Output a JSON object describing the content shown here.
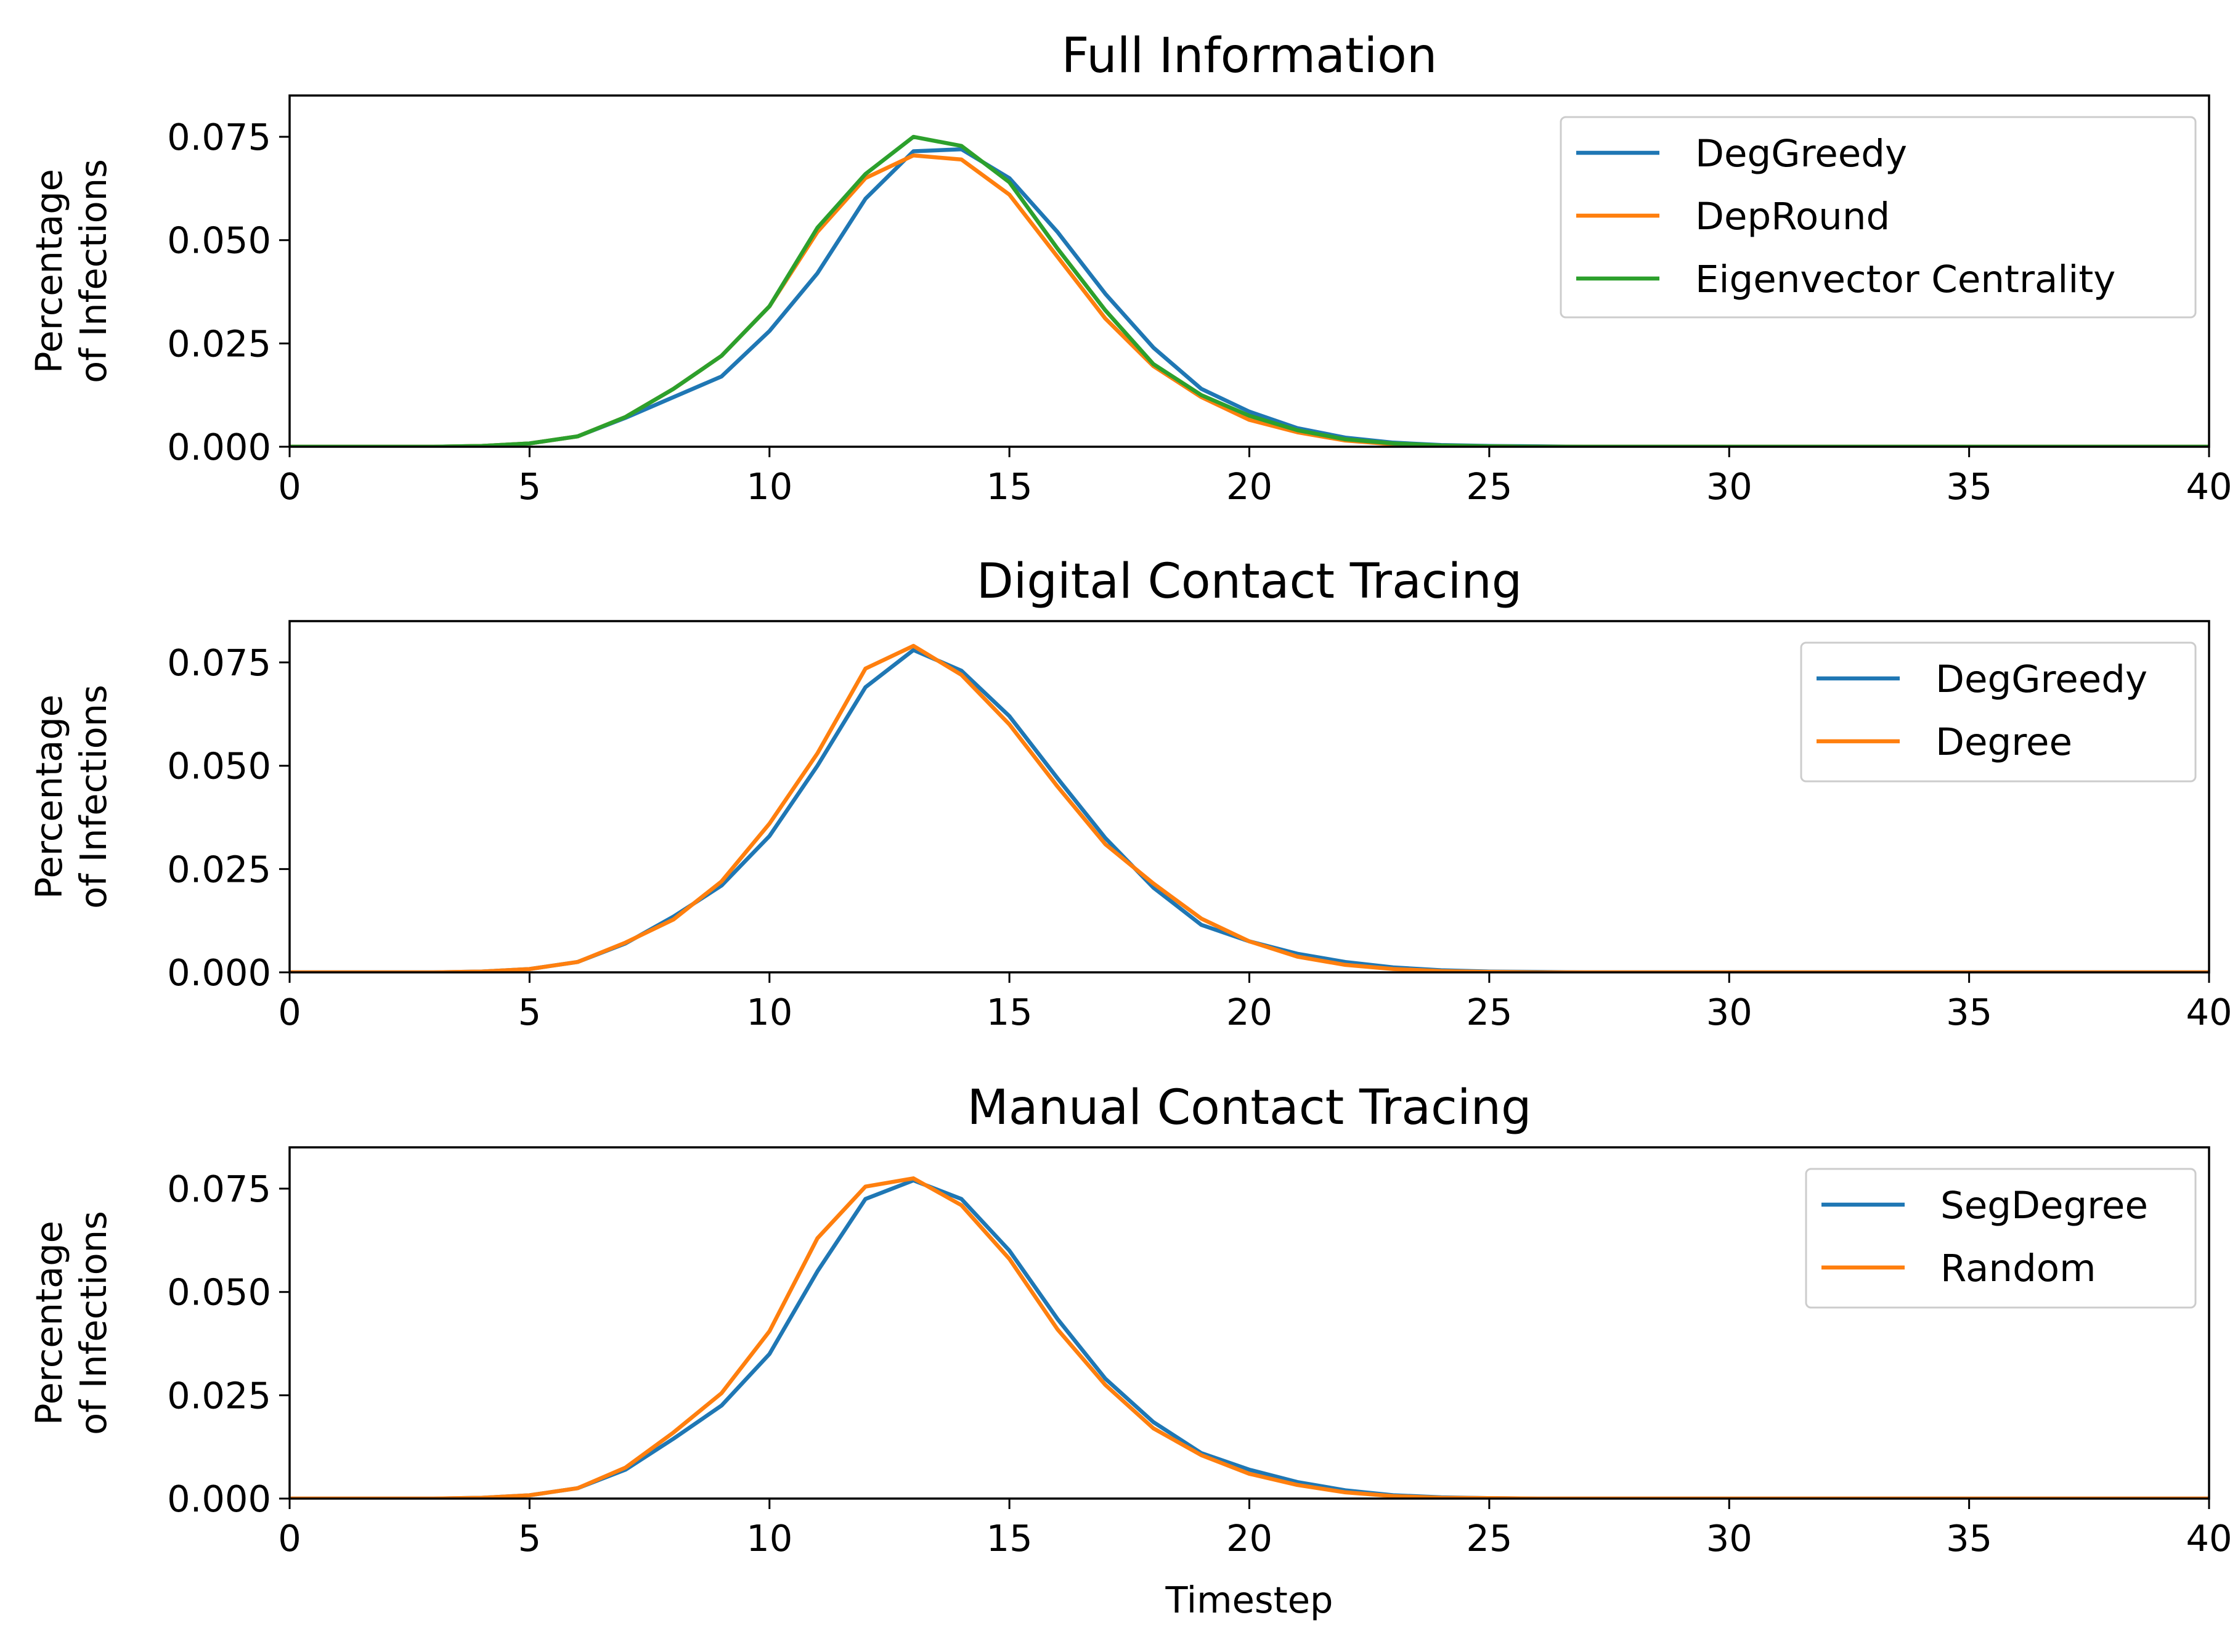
{
  "chart_data": [
    {
      "type": "line",
      "title": "Full Information",
      "xlabel": "",
      "ylabel": [
        "Percentage",
        "of Infections"
      ],
      "xlim": [
        0,
        40
      ],
      "ylim": [
        0,
        0.085
      ],
      "xticks": [
        0,
        5,
        10,
        15,
        20,
        25,
        30,
        35,
        40
      ],
      "xtick_labels": [
        "0",
        "5",
        "10",
        "15",
        "20",
        "25",
        "30",
        "35",
        "40"
      ],
      "yticks": [
        0,
        0.025,
        0.05,
        0.075
      ],
      "ytick_labels": [
        "0.000",
        "0.025",
        "0.050",
        "0.075"
      ],
      "grid": false,
      "legend_position": "top-right",
      "x": [
        0,
        1,
        2,
        3,
        4,
        5,
        6,
        7,
        8,
        9,
        10,
        11,
        12,
        13,
        14,
        15,
        16,
        17,
        18,
        19,
        20,
        21,
        22,
        23,
        24,
        25,
        26,
        27,
        28,
        29,
        30,
        31,
        32,
        33,
        34,
        35,
        36,
        37,
        38,
        39,
        40
      ],
      "series": [
        {
          "name": "DegGreedy",
          "color": "#1f77b4",
          "values": [
            0,
            0,
            0,
            0,
            0.0002,
            0.0008,
            0.0025,
            0.007,
            0.012,
            0.017,
            0.028,
            0.042,
            0.06,
            0.0715,
            0.072,
            0.065,
            0.052,
            0.037,
            0.024,
            0.014,
            0.0085,
            0.0045,
            0.0022,
            0.001,
            0.0004,
            0.0002,
            0.0001,
            0,
            0,
            0,
            0,
            0,
            0,
            0,
            0,
            0,
            0,
            0,
            0,
            0,
            0
          ]
        },
        {
          "name": "DepRound",
          "color": "#ff7f0e",
          "values": [
            0,
            0,
            0,
            0,
            0.0002,
            0.0008,
            0.0025,
            0.0072,
            0.014,
            0.022,
            0.034,
            0.052,
            0.065,
            0.0705,
            0.0695,
            0.061,
            0.046,
            0.031,
            0.0195,
            0.012,
            0.0065,
            0.0035,
            0.0015,
            0.0006,
            0.0002,
            0.0001,
            0,
            0,
            0,
            0,
            0,
            0,
            0,
            0,
            0,
            0,
            0,
            0,
            0,
            0,
            0
          ]
        },
        {
          "name": "Eigenvector Centrality",
          "color": "#2ca02c",
          "values": [
            0,
            0,
            0,
            0,
            0.0002,
            0.0008,
            0.0025,
            0.0072,
            0.014,
            0.022,
            0.034,
            0.053,
            0.066,
            0.075,
            0.0728,
            0.064,
            0.048,
            0.033,
            0.02,
            0.0125,
            0.0075,
            0.004,
            0.0018,
            0.0008,
            0.0003,
            0.0001,
            0,
            0,
            0,
            0,
            0,
            0,
            0,
            0,
            0,
            0,
            0,
            0,
            0,
            0,
            0
          ]
        }
      ]
    },
    {
      "type": "line",
      "title": "Digital Contact Tracing",
      "xlabel": "",
      "ylabel": [
        "Percentage",
        "of Infections"
      ],
      "xlim": [
        0,
        40
      ],
      "ylim": [
        0,
        0.085
      ],
      "xticks": [
        0,
        5,
        10,
        15,
        20,
        25,
        30,
        35,
        40
      ],
      "xtick_labels": [
        "0",
        "5",
        "10",
        "15",
        "20",
        "25",
        "30",
        "35",
        "40"
      ],
      "yticks": [
        0,
        0.025,
        0.05,
        0.075
      ],
      "ytick_labels": [
        "0.000",
        "0.025",
        "0.050",
        "0.075"
      ],
      "grid": false,
      "legend_position": "top-right",
      "x": [
        0,
        1,
        2,
        3,
        4,
        5,
        6,
        7,
        8,
        9,
        10,
        11,
        12,
        13,
        14,
        15,
        16,
        17,
        18,
        19,
        20,
        21,
        22,
        23,
        24,
        25,
        26,
        27,
        28,
        29,
        30,
        31,
        32,
        33,
        34,
        35,
        36,
        37,
        38,
        39,
        40
      ],
      "series": [
        {
          "name": "DegGreedy",
          "color": "#1f77b4",
          "values": [
            0,
            0,
            0,
            0,
            0.0002,
            0.0008,
            0.0025,
            0.007,
            0.0135,
            0.021,
            0.033,
            0.05,
            0.069,
            0.078,
            0.073,
            0.062,
            0.047,
            0.0325,
            0.0205,
            0.0115,
            0.0075,
            0.0045,
            0.0025,
            0.0012,
            0.0005,
            0.0002,
            0.0001,
            0,
            0,
            0,
            0,
            0,
            0,
            0,
            0,
            0,
            0,
            0,
            0,
            0,
            0
          ]
        },
        {
          "name": "Degree",
          "color": "#ff7f0e",
          "values": [
            0,
            0,
            0,
            0,
            0.0002,
            0.0008,
            0.0025,
            0.0072,
            0.0128,
            0.022,
            0.036,
            0.053,
            0.0735,
            0.079,
            0.072,
            0.06,
            0.045,
            0.031,
            0.0215,
            0.013,
            0.0075,
            0.0038,
            0.0018,
            0.0008,
            0.0003,
            0.0001,
            0,
            0,
            0,
            0,
            0,
            0,
            0,
            0,
            0,
            0,
            0,
            0,
            0,
            0,
            0
          ]
        }
      ]
    },
    {
      "type": "line",
      "title": "Manual Contact Tracing",
      "xlabel": "Timestep",
      "ylabel": [
        "Percentage",
        "of Infections"
      ],
      "xlim": [
        0,
        40
      ],
      "ylim": [
        0,
        0.085
      ],
      "xticks": [
        0,
        5,
        10,
        15,
        20,
        25,
        30,
        35,
        40
      ],
      "xtick_labels": [
        "0",
        "5",
        "10",
        "15",
        "20",
        "25",
        "30",
        "35",
        "40"
      ],
      "yticks": [
        0,
        0.025,
        0.05,
        0.075
      ],
      "ytick_labels": [
        "0.000",
        "0.025",
        "0.050",
        "0.075"
      ],
      "grid": false,
      "legend_position": "top-right",
      "x": [
        0,
        1,
        2,
        3,
        4,
        5,
        6,
        7,
        8,
        9,
        10,
        11,
        12,
        13,
        14,
        15,
        16,
        17,
        18,
        19,
        20,
        21,
        22,
        23,
        24,
        25,
        26,
        27,
        28,
        29,
        30,
        31,
        32,
        33,
        34,
        35,
        36,
        37,
        38,
        39,
        40
      ],
      "series": [
        {
          "name": "SegDegree",
          "color": "#1f77b4",
          "values": [
            0,
            0,
            0,
            0,
            0.0002,
            0.0008,
            0.0025,
            0.007,
            0.0145,
            0.0225,
            0.035,
            0.055,
            0.0725,
            0.077,
            0.0725,
            0.06,
            0.0435,
            0.029,
            0.0185,
            0.011,
            0.007,
            0.004,
            0.002,
            0.0008,
            0.0003,
            0.0001,
            0,
            0,
            0,
            0,
            0,
            0,
            0,
            0,
            0,
            0,
            0,
            0,
            0,
            0,
            0
          ]
        },
        {
          "name": "Random",
          "color": "#ff7f0e",
          "values": [
            0,
            0,
            0,
            0,
            0.0002,
            0.0008,
            0.0025,
            0.0075,
            0.016,
            0.0255,
            0.0405,
            0.063,
            0.0755,
            0.0775,
            0.071,
            0.058,
            0.041,
            0.0275,
            0.017,
            0.0105,
            0.006,
            0.0033,
            0.0015,
            0.0006,
            0.0002,
            0.0001,
            0,
            0,
            0,
            0,
            0,
            0,
            0,
            0,
            0,
            0,
            0,
            0,
            0,
            0,
            0
          ]
        }
      ]
    }
  ]
}
